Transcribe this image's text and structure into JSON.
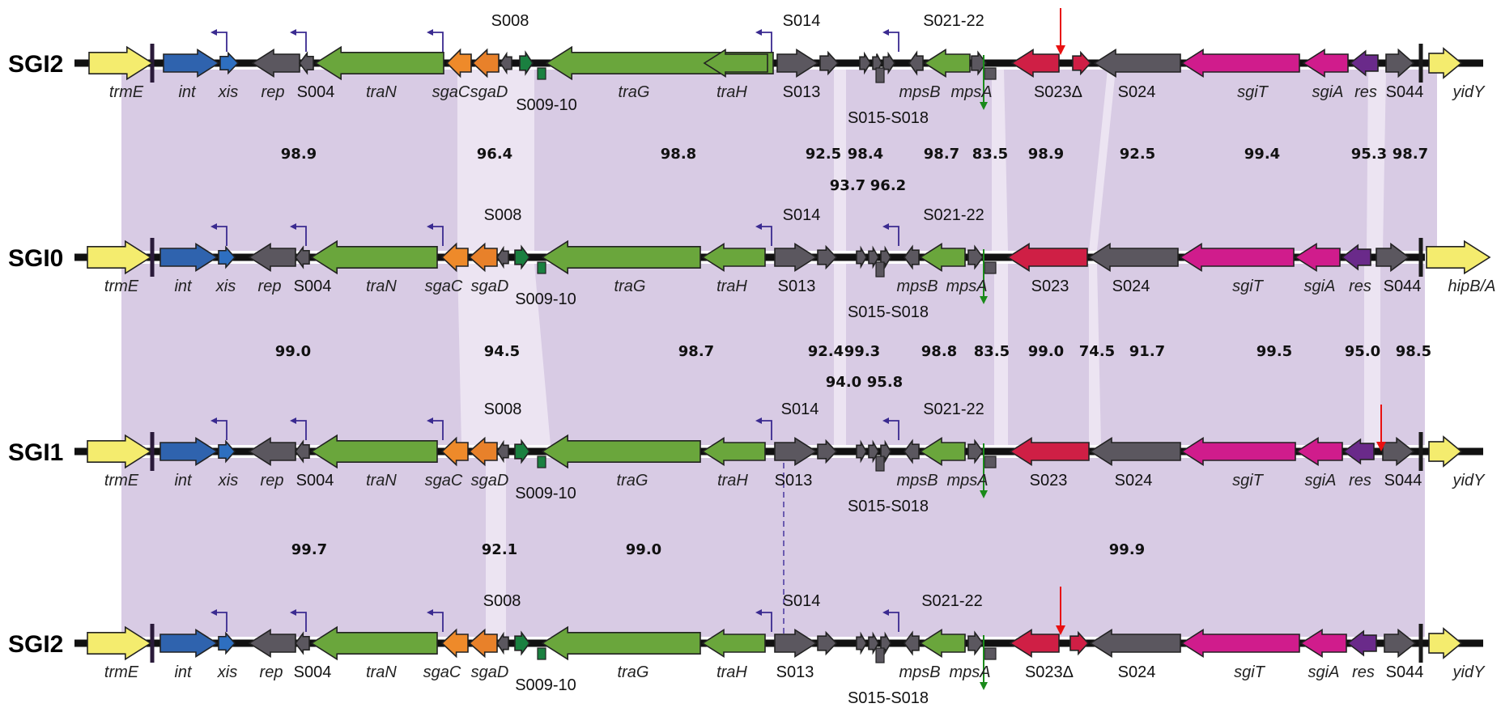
{
  "tracks": [
    {
      "name": "SGI2",
      "top": [
        [
          "S008",
          630
        ],
        [
          "S014",
          990
        ],
        [
          "S021-22",
          1178
        ]
      ],
      "bottom": [
        [
          "trmE",
          156,
          1
        ],
        [
          "int",
          231,
          1
        ],
        [
          "xis",
          282,
          1
        ],
        [
          "rep",
          337,
          1
        ],
        [
          "S004",
          390,
          0
        ],
        [
          "traN",
          471,
          1
        ],
        [
          "sgaC",
          557,
          1
        ],
        [
          "sgaD",
          604,
          1
        ],
        [
          "S009-10",
          675,
          0
        ],
        [
          "traG",
          783,
          1
        ],
        [
          "traH",
          904,
          1
        ],
        [
          "S013",
          990,
          0
        ],
        [
          "mpsB",
          1136,
          1
        ],
        [
          "mpsA",
          1200,
          1
        ],
        [
          "S023Δ",
          1307,
          0
        ],
        [
          "S024",
          1404,
          0
        ],
        [
          "sgiT",
          1547,
          1
        ],
        [
          "sgiA",
          1640,
          1
        ],
        [
          "res",
          1687,
          1
        ],
        [
          "S044",
          1735,
          0
        ],
        [
          "yidY",
          1814,
          1
        ]
      ],
      "extra": [
        [
          "S015-S018",
          1097
        ]
      ]
    },
    {
      "name": "SGI0",
      "top": [
        [
          "S008",
          621
        ],
        [
          "S014",
          990
        ],
        [
          "S021-22",
          1178
        ]
      ],
      "bottom": [
        [
          "trmE",
          150,
          1
        ],
        [
          "int",
          226,
          1
        ],
        [
          "xis",
          279,
          1
        ],
        [
          "rep",
          333,
          1
        ],
        [
          "S004",
          386,
          0
        ],
        [
          "traN",
          471,
          1
        ],
        [
          "sgaC",
          548,
          1
        ],
        [
          "sgaD",
          605,
          1
        ],
        [
          "S009-10",
          674,
          0
        ],
        [
          "traG",
          778,
          1
        ],
        [
          "traH",
          904,
          1
        ],
        [
          "S013",
          984,
          0
        ],
        [
          "mpsB",
          1133,
          1
        ],
        [
          "mpsA",
          1194,
          1
        ],
        [
          "S023",
          1297,
          0
        ],
        [
          "S024",
          1397,
          0
        ],
        [
          "sgiT",
          1541,
          1
        ],
        [
          "sgiA",
          1630,
          1
        ],
        [
          "res",
          1680,
          1
        ],
        [
          "S044",
          1732,
          0
        ],
        [
          "hipB/A",
          1818,
          1
        ]
      ],
      "extra": [
        [
          "S015-S018",
          1097
        ]
      ]
    },
    {
      "name": "SGI1",
      "top": [
        [
          "S008",
          621
        ],
        [
          "S014",
          988
        ],
        [
          "S021-22",
          1178
        ]
      ],
      "bottom": [
        [
          "trmE",
          150,
          1
        ],
        [
          "int",
          226,
          1
        ],
        [
          "xis",
          282,
          1
        ],
        [
          "rep",
          336,
          1
        ],
        [
          "S004",
          389,
          0
        ],
        [
          "traN",
          471,
          1
        ],
        [
          "sgaC",
          548,
          1
        ],
        [
          "sgaD",
          605,
          1
        ],
        [
          "S009-10",
          674,
          0
        ],
        [
          "traG",
          781,
          1
        ],
        [
          "traH",
          905,
          1
        ],
        [
          "S013",
          980,
          0
        ],
        [
          "mpsB",
          1133,
          1
        ],
        [
          "mpsA",
          1195,
          1
        ],
        [
          "S023",
          1295,
          0
        ],
        [
          "S024",
          1400,
          0
        ],
        [
          "sgiT",
          1541,
          1
        ],
        [
          "sgiA",
          1631,
          1
        ],
        [
          "res",
          1680,
          1
        ],
        [
          "S044",
          1733,
          0
        ],
        [
          "yidY",
          1814,
          1
        ]
      ],
      "extra": [
        [
          "S015-S018",
          1097
        ]
      ]
    },
    {
      "name": "SGI2",
      "top": [
        [
          "S008",
          620
        ],
        [
          "S014",
          990
        ],
        [
          "S021-22",
          1176
        ]
      ],
      "bottom": [
        [
          "trmE",
          150,
          1
        ],
        [
          "int",
          226,
          1
        ],
        [
          "xis",
          281,
          1
        ],
        [
          "rep",
          335,
          1
        ],
        [
          "S004",
          386,
          0
        ],
        [
          "traN",
          471,
          1
        ],
        [
          "sgaC",
          546,
          1
        ],
        [
          "sgaD",
          605,
          1
        ],
        [
          "S009-10",
          674,
          0
        ],
        [
          "traG",
          782,
          1
        ],
        [
          "traH",
          904,
          1
        ],
        [
          "S013",
          982,
          0
        ],
        [
          "mpsB",
          1136,
          1
        ],
        [
          "mpsA",
          1198,
          1
        ],
        [
          "S023Δ",
          1296,
          0
        ],
        [
          "S024",
          1404,
          0
        ],
        [
          "sgiT",
          1543,
          1
        ],
        [
          "sgiA",
          1635,
          1
        ],
        [
          "res",
          1684,
          1
        ],
        [
          "S044",
          1735,
          0
        ],
        [
          "yidY",
          1814,
          1
        ]
      ],
      "extra": [
        [
          "S015-S018",
          1097
        ]
      ]
    }
  ],
  "identity_values": [
    [
      [
        "98.9",
        369
      ],
      [
        "96.4",
        611
      ],
      [
        "98.8",
        838
      ],
      [
        "92.5",
        1017
      ],
      [
        "98.4",
        1069
      ],
      [
        "98.7",
        1163
      ],
      [
        "83.5",
        1223
      ],
      [
        "98.9",
        1292
      ],
      [
        "92.5",
        1405
      ],
      [
        "99.4",
        1559
      ],
      [
        "95.3",
        1691
      ],
      [
        "98.7",
        1742
      ],
      [
        "93.7",
        1047,
        1
      ],
      [
        "96.2",
        1097,
        1
      ]
    ],
    [
      [
        "99.0",
        362
      ],
      [
        "94.5",
        620
      ],
      [
        "98.7",
        860
      ],
      [
        "92.4",
        1020
      ],
      [
        "99.3",
        1065
      ],
      [
        "98.8",
        1160
      ],
      [
        "83.5",
        1225
      ],
      [
        "99.0",
        1292
      ],
      [
        "74.5",
        1355
      ],
      [
        "91.7",
        1417
      ],
      [
        "99.5",
        1574
      ],
      [
        "95.0",
        1683
      ],
      [
        "98.5",
        1746
      ],
      [
        "94.0",
        1042,
        1
      ],
      [
        "95.8",
        1093,
        1
      ]
    ],
    [
      [
        "99.7",
        382
      ],
      [
        "92.1",
        617
      ],
      [
        "99.0",
        795
      ],
      [
        "99.9",
        1392
      ]
    ]
  ],
  "colors": {
    "synteny": "#d8cbe4",
    "backbone": "#111111",
    "trmE": "#f4ec6e",
    "int": "#2f63ae",
    "xis": "#2e6fc0",
    "grey": "#5b575f",
    "traN": "#6aa63c",
    "sgaC": "#ee8a2a",
    "sgaD": "#e8812a",
    "S008": "#1a8040",
    "traG": "#6aa63c",
    "S023": "#cf1f45",
    "sgiT": "#d01c8c",
    "res": "#6a2a8a",
    "promoter": "#3a2a90",
    "red_arrow": "#e81010",
    "green_arrow": "#1a8a1a"
  }
}
